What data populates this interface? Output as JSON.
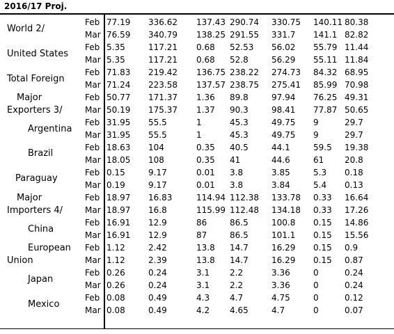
{
  "header": "2016/17 Proj.",
  "groups": [
    {
      "label": "World 2/",
      "rows": [
        {
          "month": "Feb",
          "values": [
            "77.19",
            "336.62",
            "137.43",
            "290.74",
            "330.75",
            "140.11",
            "80.38"
          ]
        },
        {
          "month": "Mar",
          "values": [
            "76.59",
            "340.79",
            "138.25",
            "291.55",
            "331.7",
            "141.1",
            "82.82"
          ]
        }
      ]
    },
    {
      "label": "United States",
      "rows": [
        {
          "month": "Feb",
          "values": [
            "5.35",
            "117.21",
            "0.68",
            "52.53",
            "56.02",
            "55.79",
            "11.44"
          ]
        },
        {
          "month": "Mar",
          "values": [
            "5.35",
            "117.21",
            "0.68",
            "52.8",
            "56.29",
            "55.11",
            "11.84"
          ]
        }
      ]
    },
    {
      "label": "Total Foreign",
      "rows": [
        {
          "month": "Feb",
          "values": [
            "71.83",
            "219.42",
            "136.75",
            "238.22",
            "274.73",
            "84.32",
            "68.95"
          ]
        },
        {
          "month": "Mar",
          "values": [
            "71.24",
            "223.58",
            "137.57",
            "238.75",
            "275.41",
            "85.99",
            "70.98"
          ]
        }
      ]
    },
    {
      "label": "Major",
      "label2": "Exporters 3/",
      "rows": [
        {
          "month": "Feb",
          "values": [
            "50.77",
            "171.37",
            "1.36",
            "89.8",
            "97.94",
            "76.25",
            "49.31"
          ]
        },
        {
          "month": "Mar",
          "values": [
            "50.19",
            "175.37",
            "1.37",
            "90.3",
            "98.41",
            "77.87",
            "50.65"
          ]
        }
      ]
    },
    {
      "label": "Argentina",
      "rows": [
        {
          "month": "Feb",
          "values": [
            "31.95",
            "55.5",
            "1",
            "45.3",
            "49.75",
            "9",
            "29.7"
          ]
        },
        {
          "month": "Mar",
          "values": [
            "31.95",
            "55.5",
            "1",
            "45.3",
            "49.75",
            "9",
            "29.7"
          ]
        }
      ]
    },
    {
      "label": "Brazil",
      "rows": [
        {
          "month": "Feb",
          "values": [
            "18.63",
            "104",
            "0.35",
            "40.5",
            "44.1",
            "59.5",
            "19.38"
          ]
        },
        {
          "month": "Mar",
          "values": [
            "18.05",
            "108",
            "0.35",
            "41",
            "44.6",
            "61",
            "20.8"
          ]
        }
      ]
    },
    {
      "label": "Paraguay",
      "rows": [
        {
          "month": "Feb",
          "values": [
            "0.15",
            "9.17",
            "0.01",
            "3.8",
            "3.85",
            "5.3",
            "0.18"
          ]
        },
        {
          "month": "Mar",
          "values": [
            "0.19",
            "9.17",
            "0.01",
            "3.8",
            "3.84",
            "5.4",
            "0.13"
          ]
        }
      ]
    },
    {
      "label": "Major",
      "label2": "Importers 4/",
      "rows": [
        {
          "month": "Feb",
          "values": [
            "18.97",
            "16.83",
            "114.94",
            "112.38",
            "133.78",
            "0.33",
            "16.64"
          ]
        },
        {
          "month": "Mar",
          "values": [
            "18.97",
            "16.8",
            "115.99",
            "112.48",
            "134.18",
            "0.33",
            "17.26"
          ]
        }
      ]
    },
    {
      "label": "China",
      "rows": [
        {
          "month": "Feb",
          "values": [
            "16.91",
            "12.9",
            "86",
            "86.5",
            "100.8",
            "0.15",
            "14.86"
          ]
        },
        {
          "month": "Mar",
          "values": [
            "16.91",
            "12.9",
            "87",
            "86.5",
            "101.1",
            "0.15",
            "15.56"
          ]
        }
      ]
    },
    {
      "label": "European",
      "label2": "Union",
      "rows": [
        {
          "month": "Feb",
          "values": [
            "1.12",
            "2.42",
            "13.8",
            "14.7",
            "16.29",
            "0.15",
            "0.9"
          ]
        },
        {
          "month": "Mar",
          "values": [
            "1.12",
            "2.39",
            "13.8",
            "14.7",
            "16.29",
            "0.15",
            "0.87"
          ]
        }
      ]
    },
    {
      "label": "Japan",
      "rows": [
        {
          "month": "Feb",
          "values": [
            "0.26",
            "0.24",
            "3.1",
            "2.2",
            "3.36",
            "0",
            "0.24"
          ]
        },
        {
          "month": "Mar",
          "values": [
            "0.26",
            "0.24",
            "3.1",
            "2.2",
            "3.36",
            "0",
            "0.24"
          ]
        }
      ]
    },
    {
      "label": "Mexico",
      "rows": [
        {
          "month": "Feb",
          "values": [
            "0.08",
            "0.49",
            "4.3",
            "4.7",
            "4.75",
            "0",
            "0.12"
          ]
        },
        {
          "month": "Mar",
          "values": [
            "0.08",
            "0.49",
            "4.2",
            "4.65",
            "4.7",
            "0",
            "0.07"
          ]
        }
      ]
    }
  ]
}
